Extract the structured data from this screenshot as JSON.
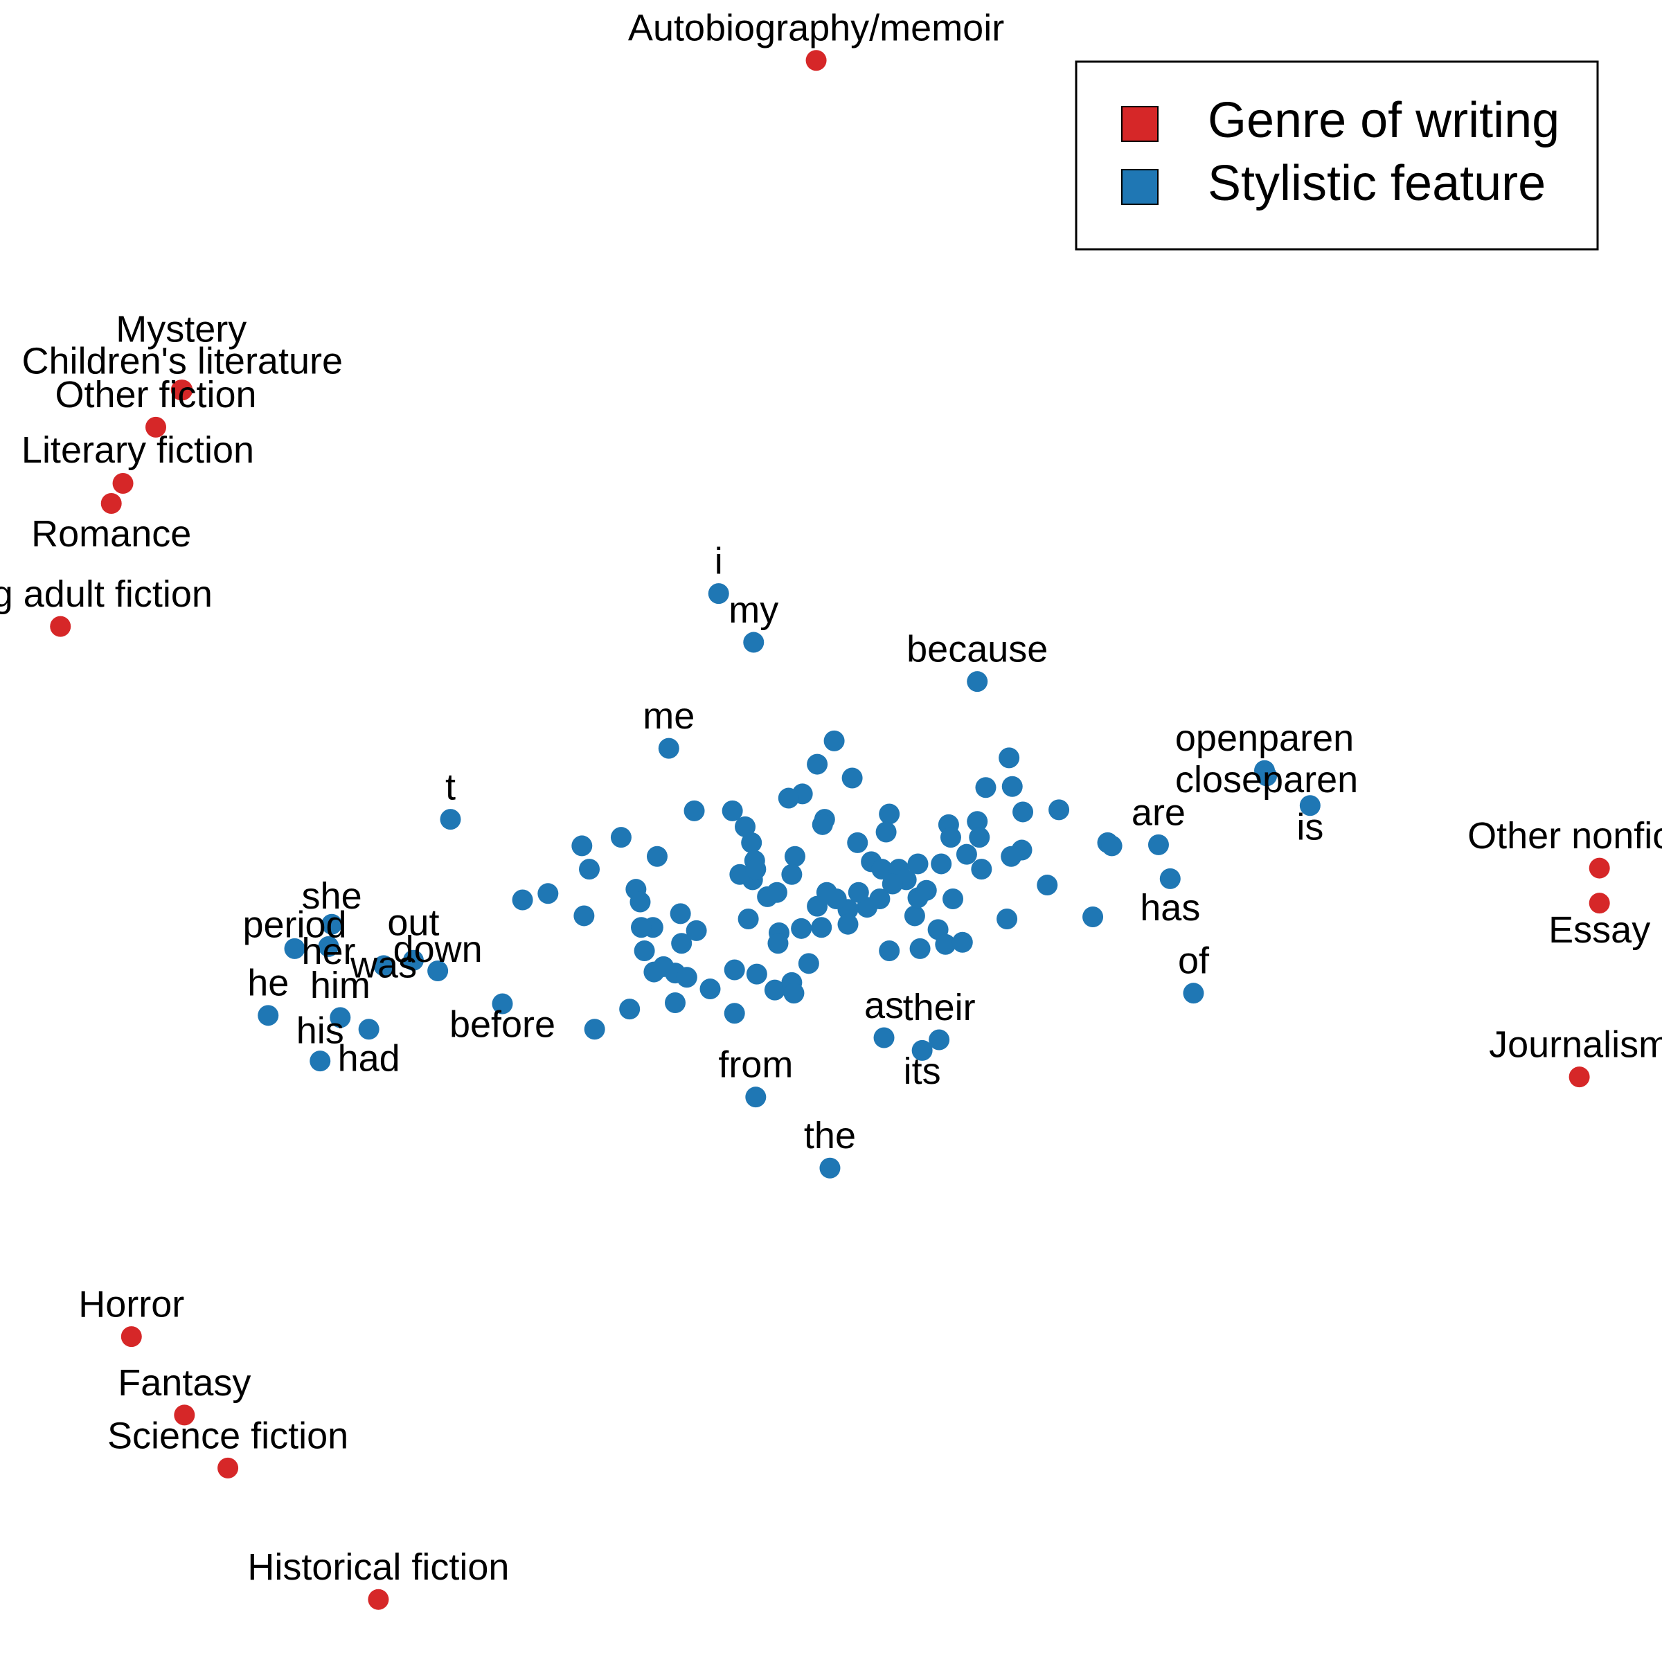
{
  "chart_data": {
    "type": "scatter",
    "legend": "top-right",
    "xlim": [
      0,
      1568
    ],
    "ylim": [
      1568,
      0
    ],
    "series": [
      {
        "name": "Genre of writing",
        "color": "#d62728",
        "x": [
          770,
          171,
          172,
          147,
          116,
          105,
          57,
          124,
          174,
          215,
          357,
          1509,
          1509,
          1490
        ],
        "y": [
          57,
          368,
          368,
          403,
          456,
          475,
          591,
          1261,
          1335,
          1385,
          1509,
          819,
          852,
          1016
        ],
        "labels": [
          "Autobiography/memoir",
          "Mystery",
          "Children's literature",
          "Other fiction",
          "Literary fiction",
          "Romance",
          "Young adult fiction",
          "Horror",
          "Fantasy",
          "Science fiction",
          "Historical fiction",
          "Other nonfiction",
          "Essay",
          "Journalism"
        ]
      },
      {
        "name": "Stylistic feature",
        "color": "#1f77b4",
        "x": [
          678,
          711,
          922,
          631,
          1193,
          1195,
          1236,
          425,
          1093,
          1104,
          1126,
          886,
          834,
          870,
          713,
          783,
          474,
          313,
          278,
          310,
          362,
          390,
          413,
          253,
          321,
          302,
          348,
          787,
          771,
          804,
          757,
          744,
          691,
          655,
          778,
          776,
          703,
          709,
          586,
          549,
          556,
          620,
          712,
          750,
          747,
          809,
          839,
          836,
          822,
          832,
          848,
          866,
          888,
          895,
          897,
          922,
          924,
          912,
          926,
          952,
          955,
          930,
          965,
          999,
          964,
          954,
          988,
          1045,
          1049,
          1031,
          950,
          899,
          885,
          892,
          908,
          868,
          839,
          863,
          866,
          874,
          855,
          842,
          830,
          818,
          810,
          800,
          789,
          780,
          771,
          775,
          800,
          756,
          735,
          734,
          724,
          733,
          706,
          710,
          698,
          713,
          642,
          657,
          643,
          616,
          605,
          608,
          617,
          626,
          637,
          648,
          670,
          693,
          714,
          731,
          747,
          749,
          763,
          637,
          594,
          693,
          561,
          551,
          600,
          604,
          517,
          493
        ],
        "y": [
          560,
          606,
          643,
          706,
          727,
          732,
          760,
          773,
          797,
          829,
          937,
          981,
          979,
          991,
          1035,
          1102,
          947,
          872,
          895,
          893,
          911,
          906,
          916,
          958,
          960,
          1001,
          971,
          699,
          721,
          734,
          749,
          753,
          765,
          765,
          773,
          778,
          780,
          795,
          790,
          798,
          820,
          808,
          812,
          808,
          825,
          795,
          768,
          785,
          813,
          820,
          820,
          815,
          815,
          778,
          790,
          775,
          790,
          806,
          820,
          715,
          742,
          743,
          766,
          764,
          802,
          808,
          835,
          795,
          798,
          865,
          867,
          848,
          877,
          891,
          889,
          895,
          897,
          864,
          847,
          840,
          830,
          834,
          848,
          856,
          842,
          858,
          848,
          842,
          855,
          875,
          872,
          876,
          880,
          890,
          846,
          842,
          867,
          830,
          825,
          820,
          862,
          878,
          890,
          875,
          875,
          897,
          917,
          912,
          918,
          922,
          933,
          915,
          919,
          934,
          927,
          937,
          909,
          946,
          952,
          956,
          971,
          864,
          839,
          851,
          843,
          849
        ],
        "labels": [
          "i",
          "my",
          "because",
          "me",
          "openparen",
          "closeparen",
          "is",
          "t",
          "are",
          "has",
          "of",
          "their",
          "as",
          "its",
          "from",
          "the",
          "before",
          "she",
          "period",
          "her",
          "was",
          "out",
          "down",
          "he",
          "him",
          "his",
          "had",
          null,
          null,
          null,
          null,
          null,
          null,
          null,
          null,
          null,
          null,
          null,
          null,
          null,
          null,
          null,
          null,
          null,
          null,
          null,
          null,
          null,
          null,
          null,
          null,
          null,
          null,
          null,
          null,
          null,
          null,
          null,
          null,
          null,
          null,
          null,
          null,
          null,
          null,
          null,
          null,
          null,
          null,
          null,
          null,
          null,
          null,
          null,
          null,
          null,
          null,
          null,
          null,
          null,
          null,
          null,
          null,
          null,
          null,
          null,
          null,
          null,
          null,
          null,
          null,
          null,
          null,
          null,
          null,
          null,
          null,
          null,
          null,
          null,
          null,
          null,
          null,
          null,
          null,
          null,
          null,
          null,
          null,
          null,
          null
        ]
      }
    ]
  }
}
